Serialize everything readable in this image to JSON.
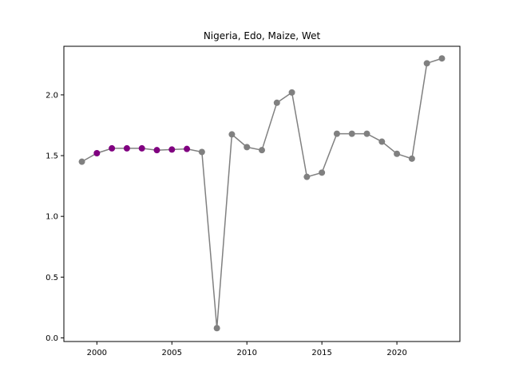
{
  "chart_data": {
    "type": "line",
    "title": "Nigeria, Edo, Maize, Wet",
    "xlabel": "",
    "ylabel": "",
    "xlim": [
      1997.8,
      2024.2
    ],
    "ylim": [
      -0.03,
      2.4
    ],
    "xticks": [
      2000,
      2005,
      2010,
      2015,
      2020
    ],
    "yticks": [
      0.0,
      0.5,
      1.0,
      1.5,
      2.0
    ],
    "grid": false,
    "line_color": "#808080",
    "x": [
      1999,
      2000,
      2001,
      2002,
      2003,
      2004,
      2005,
      2006,
      2007,
      2008,
      2009,
      2010,
      2011,
      2012,
      2013,
      2014,
      2015,
      2016,
      2017,
      2018,
      2019,
      2020,
      2021,
      2022,
      2023
    ],
    "y": [
      1.45,
      1.52,
      1.56,
      1.56,
      1.56,
      1.545,
      1.55,
      1.555,
      1.53,
      0.08,
      1.675,
      1.57,
      1.545,
      1.935,
      2.02,
      1.325,
      1.36,
      1.68,
      1.68,
      1.68,
      1.615,
      1.515,
      1.475,
      2.26,
      2.3
    ],
    "point_colors": [
      "#808080",
      "#800080",
      "#800080",
      "#800080",
      "#800080",
      "#800080",
      "#800080",
      "#800080",
      "#808080",
      "#808080",
      "#808080",
      "#808080",
      "#808080",
      "#808080",
      "#808080",
      "#808080",
      "#808080",
      "#808080",
      "#808080",
      "#808080",
      "#808080",
      "#808080",
      "#808080",
      "#808080",
      "#808080"
    ]
  }
}
